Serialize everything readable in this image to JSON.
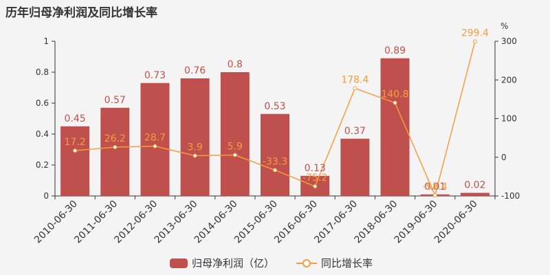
{
  "title": "历年归母净利润及同比增长率",
  "colors": {
    "bar": "#c0504d",
    "line": "#f59d3d",
    "axis": "#333333",
    "background": "#f4f4f4"
  },
  "chart_data": {
    "type": "bar",
    "categories": [
      "2010-06-30",
      "2011-06-30",
      "2012-06-30",
      "2013-06-30",
      "2014-06-30",
      "2015-06-30",
      "2016-06-30",
      "2017-06-30",
      "2018-06-30",
      "2019-06-30",
      "2020-06-30"
    ],
    "series": [
      {
        "name": "归母净利润（亿）",
        "type": "bar",
        "axis": "left",
        "values": [
          0.45,
          0.57,
          0.73,
          0.76,
          0.8,
          0.53,
          0.13,
          0.37,
          0.89,
          0.01,
          0.02
        ],
        "labels": [
          "0.45",
          "0.57",
          "0.73",
          "0.76",
          "0.8",
          "0.53",
          "0.13",
          "0.37",
          "0.89",
          "0.01",
          "0.02"
        ]
      },
      {
        "name": "同比增长率",
        "type": "line",
        "axis": "right",
        "values": [
          17.2,
          26.2,
          28.7,
          3.9,
          5.9,
          -33.3,
          -75.2,
          178.4,
          140.8,
          -98.4,
          299.4
        ],
        "labels": [
          "17.2",
          "26.2",
          "28.7",
          "3.9",
          "5.9",
          "-33.3",
          "-75.2",
          "178.4",
          "140.8",
          "-98.4",
          "299.4"
        ]
      }
    ],
    "y_left": {
      "ylim": [
        0,
        1
      ],
      "ticks": [
        "0",
        "0.2",
        "0.4",
        "0.6",
        "0.8",
        "1"
      ]
    },
    "y_right": {
      "ylim": [
        -100,
        300
      ],
      "ticks": [
        "-100",
        "0",
        "100",
        "200",
        "300"
      ],
      "unit": "%"
    },
    "legend_position": "bottom"
  }
}
